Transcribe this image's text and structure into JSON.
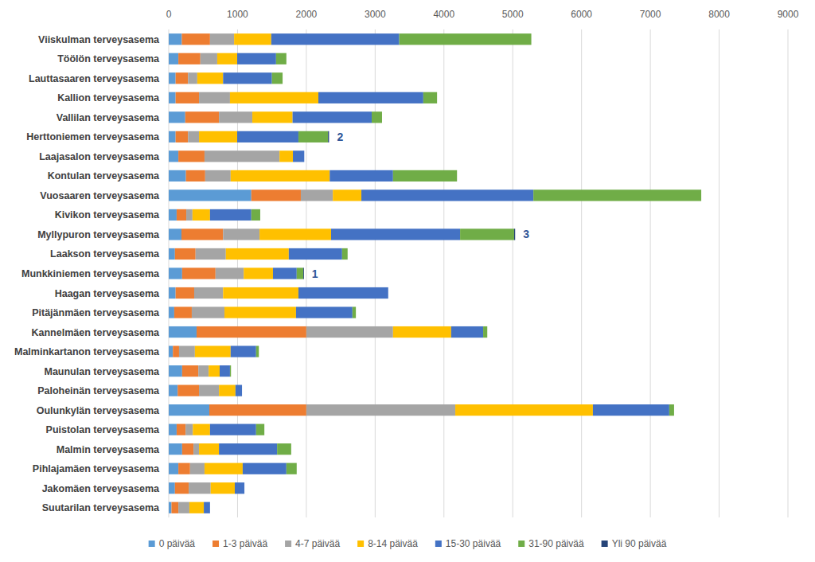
{
  "chart_data": {
    "type": "bar",
    "orientation": "horizontal",
    "stacked": true,
    "grid": true,
    "legend": "bottom",
    "xlim": [
      0,
      9000
    ],
    "xticks": [
      0,
      1000,
      2000,
      3000,
      4000,
      5000,
      6000,
      7000,
      8000,
      9000
    ],
    "categories": [
      "Viiskulman terveysasema",
      "Töölön terveysasema",
      "Lauttasaaren terveysasema",
      "Kallion terveysasema",
      "Vallilan terveysasema",
      "Herttoniemen terveysasema",
      "Laajasalon terveysasema",
      "Kontulan terveysasema",
      "Vuosaaren terveysasema",
      "Kivikon terveysasema",
      "Myllypuron terveysasema",
      "Laakson terveysasema",
      "Munkkiniemen terveysasema",
      "Haagan terveysasema",
      "Pitäjänmäen terveysasema",
      "Kannelmäen terveysasema",
      "Malminkartanon terveysasema",
      "Maunulan terveysasema",
      "Paloheinän terveysasema",
      "Oulunkylän terveysasema",
      "Puistolan terveysasema",
      "Malmin terveysasema",
      "Pihlajamäen terveysasema",
      "Jakomäen terveysasema",
      "Suutarilan terveysasema"
    ],
    "series": [
      {
        "name": "0 päivää",
        "color": "#5b9bd5",
        "values": [
          190,
          140,
          100,
          100,
          240,
          100,
          140,
          250,
          1200,
          115,
          185,
          90,
          195,
          100,
          80,
          405,
          60,
          195,
          130,
          590,
          115,
          195,
          140,
          90,
          40
        ]
      },
      {
        "name": "1-3 päivää",
        "color": "#ed7d31",
        "values": [
          410,
          320,
          180,
          340,
          490,
          180,
          380,
          280,
          720,
          140,
          605,
          300,
          485,
          270,
          255,
          1595,
          90,
          235,
          310,
          1410,
          130,
          165,
          170,
          200,
          100
        ]
      },
      {
        "name": "4-7 päivää",
        "color": "#a5a5a5",
        "values": [
          350,
          245,
          135,
          450,
          485,
          160,
          1090,
          370,
          465,
          90,
          530,
          440,
          410,
          420,
          475,
          1260,
          230,
          150,
          290,
          2165,
          105,
          80,
          210,
          320,
          160
        ]
      },
      {
        "name": "8-14 päivää",
        "color": "#ffc000",
        "values": [
          540,
          290,
          375,
          1285,
          585,
          555,
          195,
          1440,
          415,
          255,
          1040,
          915,
          425,
          1095,
          1040,
          845,
          520,
          160,
          240,
          2000,
          250,
          290,
          555,
          350,
          210
        ]
      },
      {
        "name": "15-30 päivää",
        "color": "#4472c4",
        "values": [
          1860,
          565,
          710,
          1525,
          1150,
          890,
          165,
          920,
          2500,
          600,
          1875,
          775,
          345,
          1305,
          820,
          465,
          370,
          150,
          95,
          1110,
          670,
          845,
          635,
          140,
          90
        ]
      },
      {
        "name": "31-90 päivää",
        "color": "#70ad47",
        "values": [
          1920,
          150,
          155,
          200,
          150,
          430,
          0,
          930,
          2440,
          130,
          785,
          80,
          95,
          0,
          50,
          60,
          40,
          15,
          0,
          70,
          120,
          205,
          150,
          0,
          0
        ]
      },
      {
        "name": "Yli 90 päivää",
        "color": "#264478",
        "values": [
          0,
          0,
          0,
          0,
          0,
          15,
          0,
          0,
          0,
          0,
          15,
          0,
          10,
          0,
          0,
          0,
          0,
          0,
          0,
          0,
          0,
          0,
          0,
          0,
          0
        ]
      }
    ],
    "annotations": [
      {
        "text": "2",
        "category": "Herttoniemen terveysasema"
      },
      {
        "text": "3",
        "category": "Myllypuron terveysasema"
      },
      {
        "text": "1",
        "category": "Munkkiniemen terveysasema"
      }
    ]
  }
}
